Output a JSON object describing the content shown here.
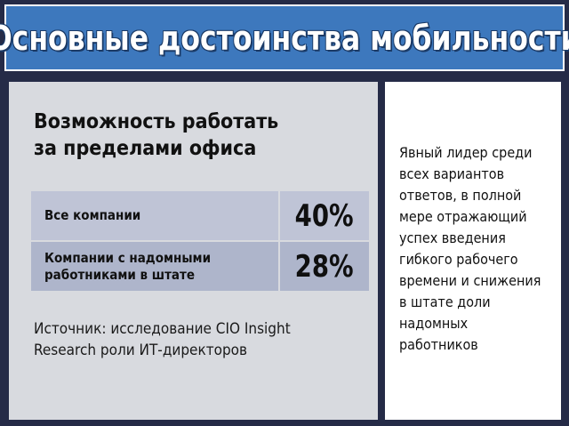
{
  "title": "Основные достоинства мобильности",
  "heading_lines": [
    "Возможность работать",
    "за пределами офиса"
  ],
  "chart_data": {
    "type": "table",
    "rows": [
      {
        "label_lines": [
          "Все компании"
        ],
        "value": 40,
        "value_text": "40%"
      },
      {
        "label_lines": [
          "Компании с надомными",
          "работниками в штате"
        ],
        "value": 28,
        "value_text": "28%"
      }
    ]
  },
  "source_lines": [
    "Источник: исследование CIO Insight",
    "Research роли ИТ-директоров"
  ],
  "side_note_lines": [
    "Явный лидер среди",
    "всех вариантов",
    "ответов, в полной",
    "мере отражающий",
    "успех введения",
    "гибкого рабочего",
    "времени и снижения",
    "в штате доли",
    "надомных",
    "работников"
  ],
  "colors": {
    "frame": "#252b47",
    "title_bar": "#3d78bd",
    "panel": "#d8dadf",
    "row_a": "#bfc4d6",
    "row_b": "#aeb5cb"
  }
}
